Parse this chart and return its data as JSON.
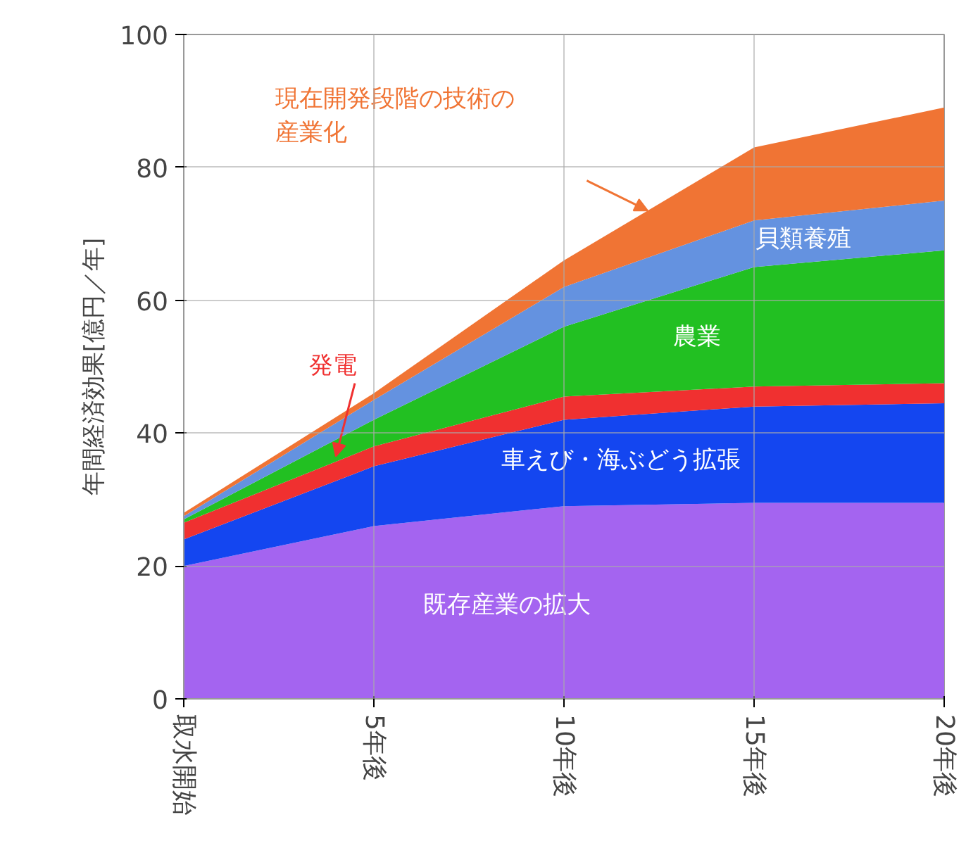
{
  "chart_data": {
    "type": "area",
    "stacked": true,
    "ylabel": "年間経済効果[億円／年]",
    "x": [
      0,
      5,
      10,
      15,
      20
    ],
    "xlim": [
      0,
      20
    ],
    "xticks": [
      {
        "value": 0,
        "label": "取水開始"
      },
      {
        "value": 5,
        "label": "5年後"
      },
      {
        "value": 10,
        "label": "10年後"
      },
      {
        "value": 15,
        "label": "15年後"
      },
      {
        "value": 20,
        "label": "20年後"
      }
    ],
    "ylim": [
      0,
      100
    ],
    "yticks": [
      0,
      20,
      40,
      60,
      80,
      100
    ],
    "grid": true,
    "series": [
      {
        "name": "既存産業の拡大",
        "color": "#a464f0",
        "values": [
          20,
          26,
          29,
          29.5,
          29.5
        ]
      },
      {
        "name": "車えび・海ぶどう拡張",
        "color": "#1446f0",
        "values": [
          4,
          9,
          13,
          14.5,
          15
        ]
      },
      {
        "name": "発電",
        "color": "#f03030",
        "values": [
          2.5,
          3,
          3.5,
          3,
          3
        ]
      },
      {
        "name": "農業",
        "color": "#22c022",
        "values": [
          0.5,
          4,
          10.5,
          18,
          20
        ]
      },
      {
        "name": "貝類養殖",
        "color": "#6492e0",
        "values": [
          0.5,
          3,
          6,
          7,
          7.5
        ]
      },
      {
        "name": "現在開発段階の技術の産業化",
        "color": "#f07434",
        "values": [
          0.5,
          1,
          4,
          11,
          14
        ]
      }
    ]
  }
}
